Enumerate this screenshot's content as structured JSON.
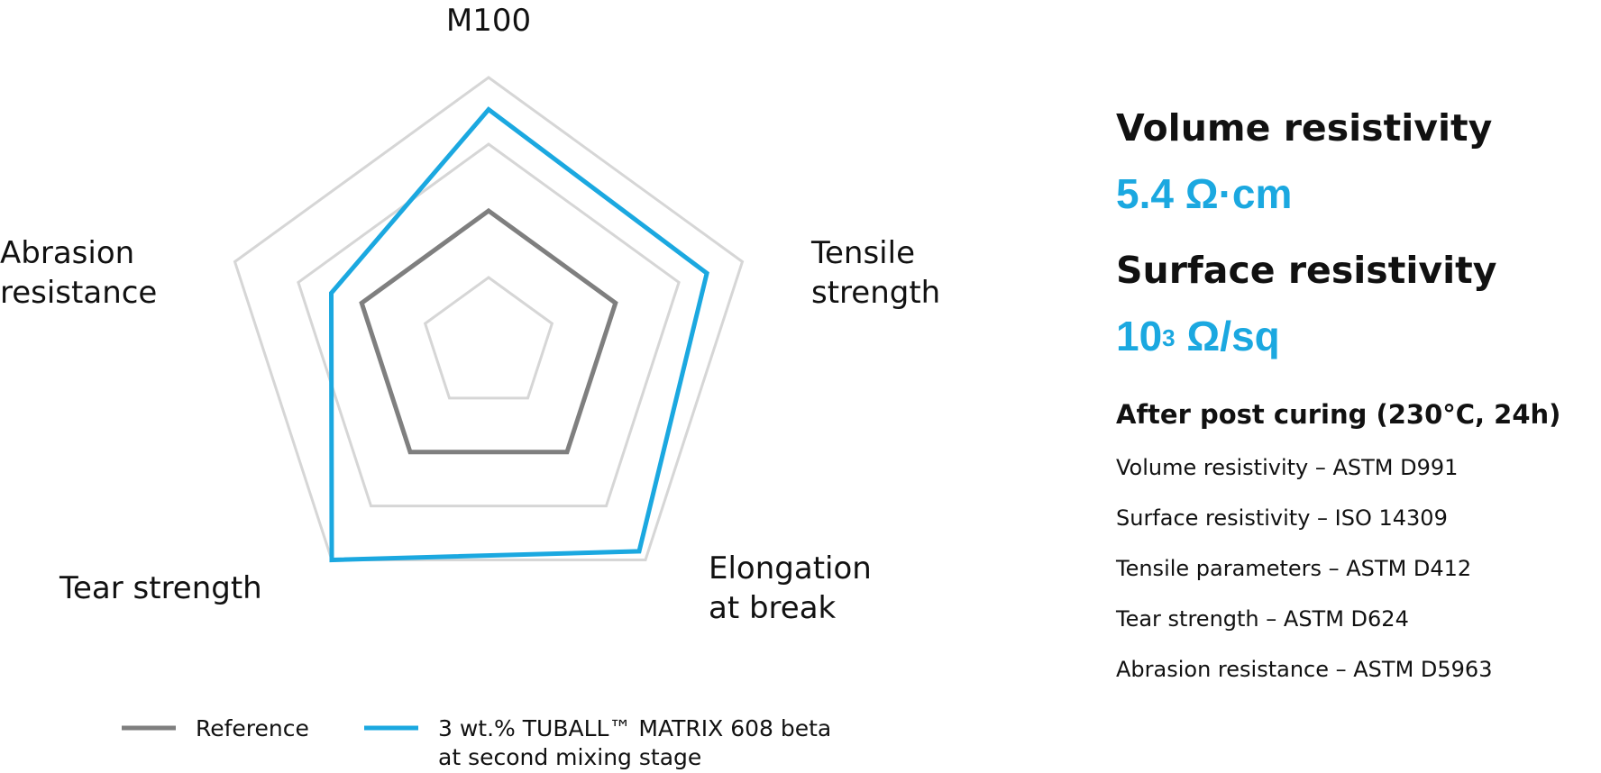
{
  "chart_data": {
    "type": "radar",
    "axes": [
      "M100",
      "Tensile strength",
      "Elongation at break",
      "Tear strength",
      "Abrasion resistance"
    ],
    "axis_label_lines": [
      [
        "M100"
      ],
      [
        "Tensile",
        "strength"
      ],
      [
        "Elongation",
        "at break"
      ],
      [
        "Tear strength"
      ],
      [
        "Abrasion",
        "resistance"
      ]
    ],
    "rlim": [
      0,
      1
    ],
    "grid_levels": [
      0.25,
      0.5,
      0.75,
      1.0
    ],
    "series": [
      {
        "name": "Reference",
        "legend_lines": [
          "Reference"
        ],
        "color": "#7f7f7f",
        "values": [
          0.5,
          0.5,
          0.5,
          0.5,
          0.5
        ]
      },
      {
        "name": "3 wt.%  TUBALL™ MATRIX 608 beta at second mixing stage",
        "legend_lines": [
          "3 wt.%  TUBALL™ MATRIX 608 beta",
          "at second mixing stage"
        ],
        "color": "#1ba8e0",
        "values": [
          0.88,
          0.86,
          0.96,
          1.0,
          0.62
        ]
      }
    ],
    "grid_color": "#d6d6d6",
    "legend_position": "bottom"
  },
  "panel": {
    "volume_heading": "Volume resistivity",
    "volume_value": "5.4 Ω·cm",
    "surface_heading": "Surface resistivity",
    "surface_base": "10",
    "surface_exp": "3",
    "surface_unit": " Ω/sq",
    "after_heading": "After post curing (230°C, 24h)",
    "methods": [
      "Volume resistivity – ASTM D991",
      "Surface resistivity – ISO 14309",
      "Tensile parameters – ASTM D412",
      "Tear strength – ASTM D624",
      "Abrasion resistance – ASTM D5963"
    ]
  }
}
